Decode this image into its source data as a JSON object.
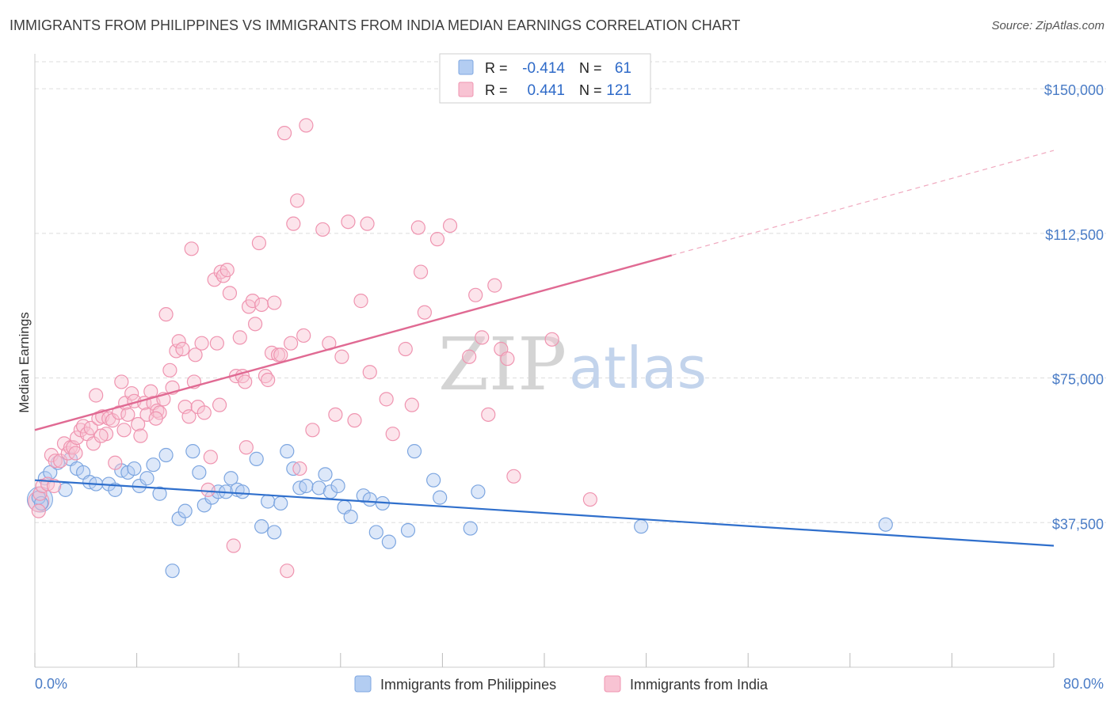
{
  "title": "IMMIGRANTS FROM PHILIPPINES VS IMMIGRANTS FROM INDIA MEDIAN EARNINGS CORRELATION CHART",
  "source": "Source: ZipAtlas.com",
  "watermark": {
    "zip": "ZIP",
    "atlas": "atlas"
  },
  "colors": {
    "philippines_fill": "#b3cdf2",
    "philippines_stroke": "#7da6e0",
    "philippines_line": "#2f6fcc",
    "india_fill": "#f8c3d3",
    "india_stroke": "#ef94b0",
    "india_line": "#e06a93",
    "grid": "#dddddd",
    "axis_text": "#4a7cc6"
  },
  "legend_stats": {
    "philippines": {
      "r_label": "R =",
      "r_value": "-0.414",
      "n_label": "N =",
      "n_value": "61"
    },
    "india": {
      "r_label": "R =",
      "r_value": "0.441",
      "n_label": "N =",
      "n_value": "121"
    }
  },
  "chart_data": {
    "type": "scatter",
    "title": "IMMIGRANTS FROM PHILIPPINES VS IMMIGRANTS FROM INDIA MEDIAN EARNINGS CORRELATION CHART",
    "xlabel": "",
    "ylabel": "Median Earnings",
    "xlim": [
      0,
      80
    ],
    "ylim": [
      0,
      157000
    ],
    "x_tick_labels": [
      "0.0%",
      "80.0%"
    ],
    "y_ticks": [
      37500,
      75000,
      112500,
      150000
    ],
    "y_tick_labels": [
      "$37,500",
      "$75,000",
      "$112,500",
      "$150,000"
    ],
    "grid": true,
    "legend_position": "bottom",
    "series": [
      {
        "name": "Immigrants from Philippines",
        "trend": {
          "x": [
            0,
            80
          ],
          "y": [
            48500,
            31500
          ],
          "dashed_from": null
        },
        "points": [
          [
            0.3,
            44000
          ],
          [
            0.5,
            42500
          ],
          [
            0.8,
            49000
          ],
          [
            1.2,
            50500
          ],
          [
            1.8,
            53000
          ],
          [
            2.4,
            46000
          ],
          [
            2.8,
            54000
          ],
          [
            3.3,
            51500
          ],
          [
            3.8,
            50500
          ],
          [
            4.3,
            48000
          ],
          [
            4.8,
            47500
          ],
          [
            5.8,
            47500
          ],
          [
            6.3,
            46000
          ],
          [
            6.8,
            51000
          ],
          [
            7.3,
            50500
          ],
          [
            7.8,
            51500
          ],
          [
            8.2,
            47000
          ],
          [
            8.8,
            49000
          ],
          [
            9.3,
            52500
          ],
          [
            9.8,
            45000
          ],
          [
            10.3,
            55000
          ],
          [
            10.8,
            25000
          ],
          [
            11.3,
            38500
          ],
          [
            11.8,
            40500
          ],
          [
            12.4,
            56000
          ],
          [
            12.9,
            50500
          ],
          [
            13.3,
            42000
          ],
          [
            13.9,
            44000
          ],
          [
            14.4,
            45500
          ],
          [
            15.0,
            45500
          ],
          [
            15.4,
            49000
          ],
          [
            15.9,
            46000
          ],
          [
            16.3,
            45500
          ],
          [
            17.4,
            54000
          ],
          [
            17.8,
            36500
          ],
          [
            18.3,
            43000
          ],
          [
            18.8,
            35000
          ],
          [
            19.3,
            42500
          ],
          [
            19.8,
            56000
          ],
          [
            20.3,
            51500
          ],
          [
            20.8,
            46500
          ],
          [
            21.3,
            47000
          ],
          [
            22.3,
            46500
          ],
          [
            22.8,
            50000
          ],
          [
            23.2,
            45500
          ],
          [
            23.8,
            47000
          ],
          [
            24.3,
            41500
          ],
          [
            24.8,
            39000
          ],
          [
            25.8,
            44500
          ],
          [
            26.3,
            43500
          ],
          [
            26.8,
            35000
          ],
          [
            27.3,
            42500
          ],
          [
            27.8,
            32500
          ],
          [
            29.3,
            35500
          ],
          [
            29.8,
            56000
          ],
          [
            31.3,
            48500
          ],
          [
            31.8,
            44000
          ],
          [
            34.2,
            36000
          ],
          [
            34.8,
            45500
          ],
          [
            47.6,
            36500
          ],
          [
            66.8,
            37000
          ]
        ]
      },
      {
        "name": "Immigrants from India",
        "trend": {
          "x": [
            0,
            80
          ],
          "y": [
            61500,
            134000
          ],
          "dashed_from": 50
        },
        "points": [
          [
            0.3,
            40500
          ],
          [
            0.4,
            45000
          ],
          [
            0.6,
            47000
          ],
          [
            1.0,
            47500
          ],
          [
            1.3,
            55000
          ],
          [
            1.6,
            53500
          ],
          [
            2.0,
            53500
          ],
          [
            2.3,
            58000
          ],
          [
            2.6,
            55500
          ],
          [
            2.8,
            57000
          ],
          [
            3.0,
            57000
          ],
          [
            3.3,
            59500
          ],
          [
            3.6,
            61500
          ],
          [
            3.8,
            62500
          ],
          [
            4.1,
            60500
          ],
          [
            4.4,
            62000
          ],
          [
            4.6,
            58000
          ],
          [
            4.8,
            70500
          ],
          [
            5.0,
            64500
          ],
          [
            5.3,
            65000
          ],
          [
            5.6,
            60500
          ],
          [
            5.8,
            64500
          ],
          [
            6.1,
            64000
          ],
          [
            6.3,
            53000
          ],
          [
            6.6,
            66000
          ],
          [
            6.8,
            74000
          ],
          [
            7.1,
            68500
          ],
          [
            7.3,
            65500
          ],
          [
            7.6,
            71000
          ],
          [
            7.8,
            69000
          ],
          [
            8.1,
            63000
          ],
          [
            8.3,
            60000
          ],
          [
            8.6,
            68500
          ],
          [
            8.8,
            65500
          ],
          [
            9.1,
            71500
          ],
          [
            9.3,
            68500
          ],
          [
            9.6,
            66500
          ],
          [
            9.8,
            66000
          ],
          [
            10.1,
            69500
          ],
          [
            10.3,
            91500
          ],
          [
            10.6,
            77000
          ],
          [
            10.8,
            72500
          ],
          [
            11.1,
            82000
          ],
          [
            11.3,
            84500
          ],
          [
            11.6,
            82500
          ],
          [
            11.8,
            67500
          ],
          [
            12.1,
            65000
          ],
          [
            12.3,
            108500
          ],
          [
            12.6,
            81000
          ],
          [
            12.8,
            67500
          ],
          [
            13.1,
            84000
          ],
          [
            13.3,
            66000
          ],
          [
            13.6,
            46000
          ],
          [
            13.8,
            54500
          ],
          [
            14.1,
            100500
          ],
          [
            14.3,
            84000
          ],
          [
            14.6,
            102500
          ],
          [
            14.8,
            101500
          ],
          [
            15.1,
            103000
          ],
          [
            15.3,
            97000
          ],
          [
            15.6,
            31500
          ],
          [
            15.8,
            75500
          ],
          [
            16.1,
            85500
          ],
          [
            16.3,
            75500
          ],
          [
            16.6,
            57000
          ],
          [
            16.8,
            93500
          ],
          [
            17.1,
            95000
          ],
          [
            17.3,
            89000
          ],
          [
            17.6,
            110000
          ],
          [
            17.8,
            94000
          ],
          [
            18.1,
            75500
          ],
          [
            18.3,
            74500
          ],
          [
            18.6,
            81500
          ],
          [
            18.8,
            94500
          ],
          [
            19.1,
            81000
          ],
          [
            19.3,
            81000
          ],
          [
            19.6,
            138500
          ],
          [
            19.8,
            25000
          ],
          [
            20.1,
            84000
          ],
          [
            20.3,
            115000
          ],
          [
            20.6,
            121000
          ],
          [
            20.8,
            51500
          ],
          [
            21.1,
            86000
          ],
          [
            21.3,
            140500
          ],
          [
            21.8,
            61500
          ],
          [
            22.6,
            113500
          ],
          [
            23.1,
            84000
          ],
          [
            23.6,
            65500
          ],
          [
            24.1,
            80500
          ],
          [
            24.6,
            115500
          ],
          [
            25.1,
            64000
          ],
          [
            25.6,
            95000
          ],
          [
            26.1,
            115000
          ],
          [
            26.3,
            76500
          ],
          [
            27.6,
            69500
          ],
          [
            28.1,
            60500
          ],
          [
            29.1,
            82500
          ],
          [
            29.6,
            68000
          ],
          [
            30.1,
            114000
          ],
          [
            30.3,
            102500
          ],
          [
            30.6,
            92000
          ],
          [
            31.6,
            111000
          ],
          [
            32.6,
            114500
          ],
          [
            34.1,
            80500
          ],
          [
            34.6,
            96500
          ],
          [
            35.1,
            85500
          ],
          [
            35.6,
            65500
          ],
          [
            36.1,
            99000
          ],
          [
            36.6,
            82500
          ],
          [
            37.1,
            80000
          ],
          [
            37.6,
            49500
          ],
          [
            40.6,
            85000
          ],
          [
            43.6,
            43500
          ],
          [
            1.5,
            47000
          ],
          [
            3.2,
            55500
          ],
          [
            5.2,
            60000
          ],
          [
            7.0,
            61500
          ],
          [
            9.5,
            64500
          ],
          [
            12.5,
            74000
          ],
          [
            14.5,
            68000
          ],
          [
            16.5,
            74000
          ]
        ]
      }
    ]
  },
  "legend": {
    "items": [
      {
        "label": "Immigrants from Philippines"
      },
      {
        "label": "Immigrants from India"
      }
    ]
  }
}
